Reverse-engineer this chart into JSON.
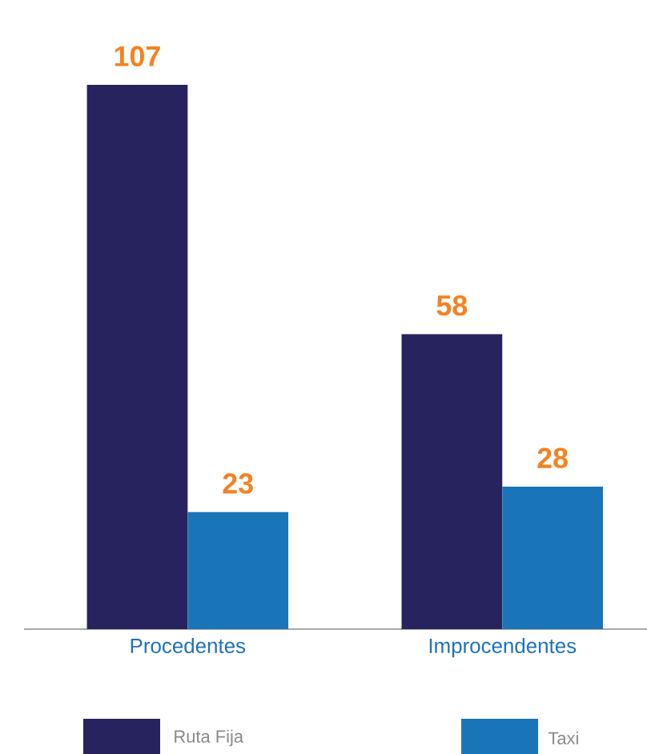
{
  "chart_data": {
    "type": "bar",
    "categories": [
      "Procedentes",
      "Improcendentes"
    ],
    "series": [
      {
        "name": "Ruta Fija",
        "color": "#27235f",
        "values": [
          107,
          58
        ]
      },
      {
        "name": "Taxi",
        "color": "#1a75b8",
        "values": [
          23,
          28
        ]
      }
    ],
    "data_labels": true,
    "legend": "bottom"
  }
}
